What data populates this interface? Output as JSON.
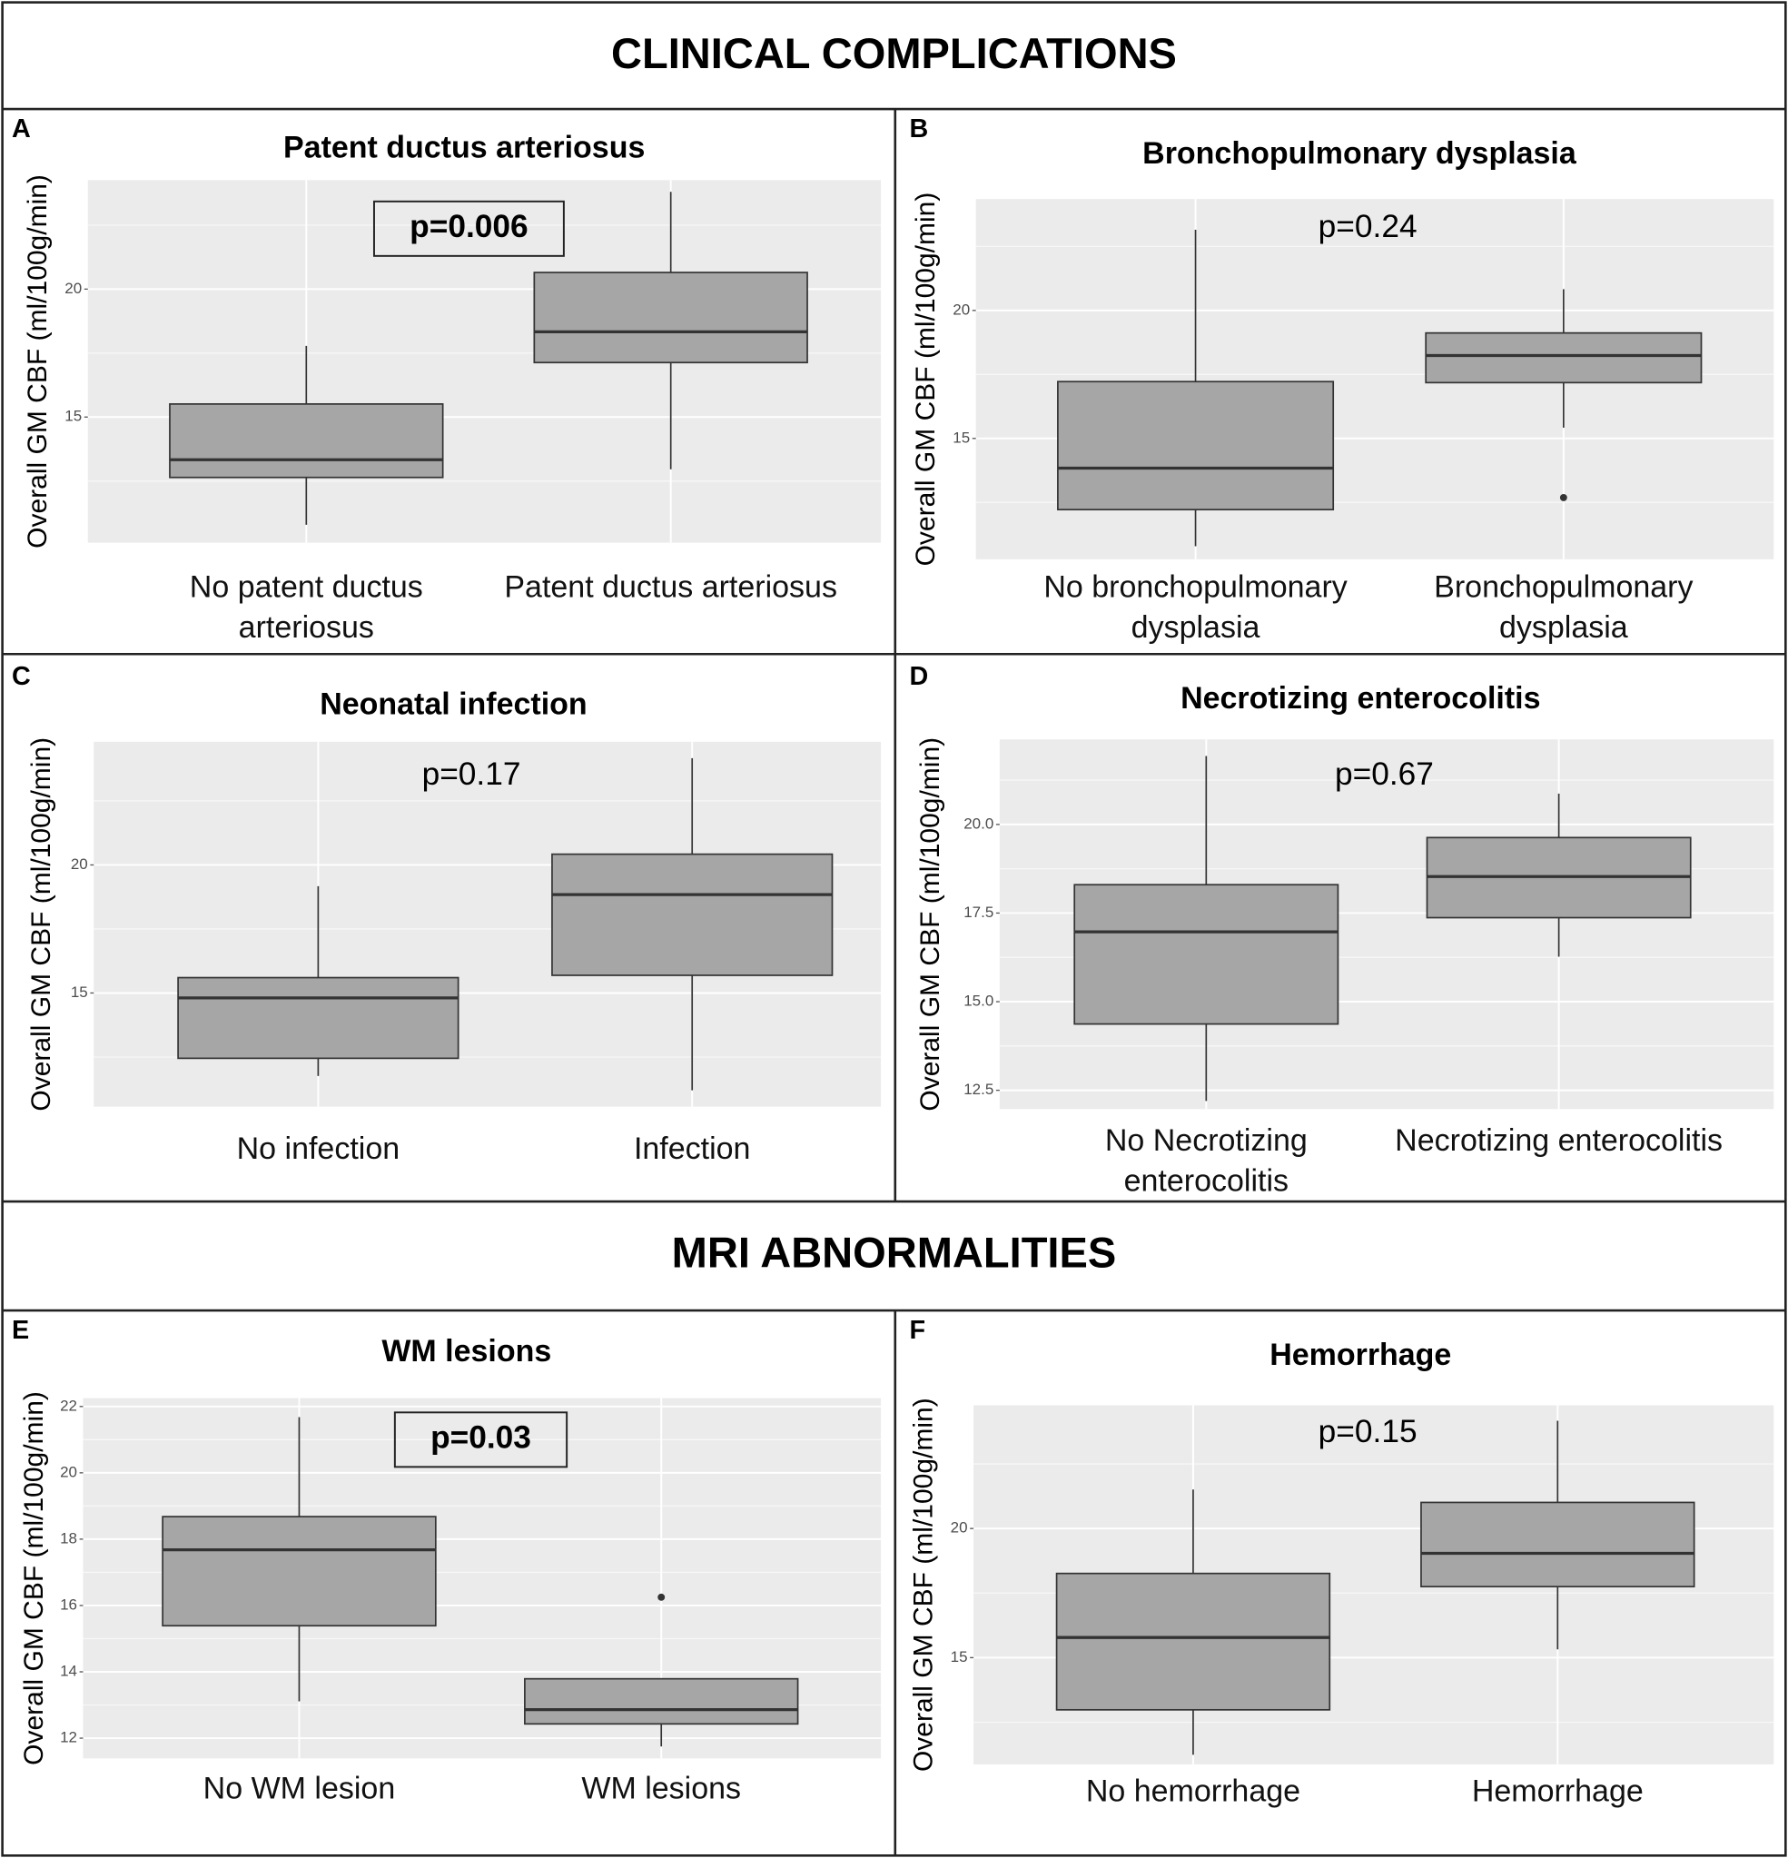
{
  "headers": [
    "CLINICAL COMPLICATIONS",
    "MRI ABNORMALITIES"
  ],
  "chart_data": [
    {
      "type": "box",
      "panel": "A",
      "title": "Patent ductus arteriosus",
      "ylabel": "Overall GM CBF (ml/100g/min)",
      "categories": [
        "No patent ductus arteriosus",
        "Patent ductus arteriosus"
      ],
      "boxes": [
        {
          "whisker_low": 10.79,
          "q1": 12.64,
          "median": 13.33,
          "q3": 15.51,
          "whisker_high": 17.78,
          "outliers": []
        },
        {
          "whisker_low": 12.96,
          "q1": 17.13,
          "median": 18.33,
          "q3": 20.65,
          "whisker_high": 23.8,
          "outliers": []
        }
      ],
      "ylim": [
        10.09,
        24.26
      ],
      "yticks": [
        15,
        20
      ],
      "grid": true,
      "color": "#a6a6a6",
      "annotation": "p=0.006",
      "annotation_boxed": true
    },
    {
      "type": "box",
      "panel": "B",
      "title": "Bronchopulmonary dysplasia",
      "ylabel": "Overall GM CBF (ml/100g/min)",
      "categories": [
        "No bronchopulmonary dysplasia",
        "Bronchopulmonary dysplasia"
      ],
      "boxes": [
        {
          "whisker_low": 10.79,
          "q1": 12.22,
          "median": 13.84,
          "q3": 17.22,
          "whisker_high": 23.15,
          "outliers": []
        },
        {
          "whisker_low": 15.42,
          "q1": 17.18,
          "median": 18.24,
          "q3": 19.12,
          "whisker_high": 20.83,
          "outliers": [
            12.69
          ]
        }
      ],
      "ylim": [
        10.28,
        24.35
      ],
      "yticks": [
        15,
        20
      ],
      "grid": true,
      "color": "#a6a6a6",
      "annotation": "p=0.24",
      "annotation_boxed": false
    },
    {
      "type": "box",
      "panel": "C",
      "title": "Neonatal infection",
      "ylabel": "Overall GM CBF (ml/100g/min)",
      "categories": [
        "No infection",
        "Infection"
      ],
      "boxes": [
        {
          "whisker_low": 11.76,
          "q1": 12.45,
          "median": 14.81,
          "q3": 15.6,
          "whisker_high": 19.17,
          "outliers": []
        },
        {
          "whisker_low": 11.2,
          "q1": 15.69,
          "median": 18.84,
          "q3": 20.42,
          "whisker_high": 24.17,
          "outliers": []
        }
      ],
      "ylim": [
        10.56,
        24.81
      ],
      "yticks": [
        15,
        20
      ],
      "grid": true,
      "color": "#a6a6a6",
      "annotation": "p=0.17",
      "annotation_boxed": false
    },
    {
      "type": "box",
      "panel": "D",
      "title": "Necrotizing enterocolitis",
      "ylabel": "Overall GM CBF (ml/100g/min)",
      "categories": [
        "No Necrotizing enterocolitis",
        "Necrotizing enterocolitis"
      ],
      "boxes": [
        {
          "whisker_low": 12.2,
          "q1": 14.37,
          "median": 16.97,
          "q3": 18.3,
          "whisker_high": 21.93,
          "outliers": []
        },
        {
          "whisker_low": 16.27,
          "q1": 17.37,
          "median": 18.53,
          "q3": 19.63,
          "whisker_high": 20.87,
          "outliers": []
        }
      ],
      "ylim": [
        11.97,
        22.4
      ],
      "yticks": [
        12.5,
        {
          "value": 15,
          "label": "15.0"
        },
        17.5,
        {
          "value": 20,
          "label": "20.0"
        }
      ],
      "grid": true,
      "color": "#a6a6a6",
      "annotation": "p=0.67",
      "annotation_boxed": false
    },
    {
      "type": "box",
      "panel": "E",
      "title": "WM lesions",
      "ylabel": "Overall GM CBF (ml/100g/min)",
      "categories": [
        "No WM lesion",
        "WM lesions"
      ],
      "boxes": [
        {
          "whisker_low": 13.11,
          "q1": 15.39,
          "median": 17.68,
          "q3": 18.68,
          "whisker_high": 21.68,
          "outliers": []
        },
        {
          "whisker_low": 11.75,
          "q1": 12.43,
          "median": 12.86,
          "q3": 13.79,
          "whisker_high": 13.79,
          "outliers": [
            16.25
          ]
        }
      ],
      "ylim": [
        11.39,
        22.25
      ],
      "yticks": [
        12,
        14,
        16,
        18,
        20,
        22
      ],
      "grid": true,
      "color": "#a6a6a6",
      "annotation": "p=0.03",
      "annotation_boxed": true
    },
    {
      "type": "box",
      "panel": "F",
      "title": "Hemorrhage",
      "ylabel": "Overall GM CBF (ml/100g/min)",
      "categories": [
        "No hemorrhage",
        "Hemorrhage"
      ],
      "boxes": [
        {
          "whisker_low": 11.24,
          "q1": 12.98,
          "median": 15.78,
          "q3": 18.26,
          "whisker_high": 21.51,
          "outliers": []
        },
        {
          "whisker_low": 15.32,
          "q1": 17.75,
          "median": 19.04,
          "q3": 21.01,
          "whisker_high": 24.17,
          "outliers": []
        }
      ],
      "ylim": [
        10.87,
        24.77
      ],
      "yticks": [
        15,
        20
      ],
      "grid": true,
      "color": "#a6a6a6",
      "annotation": "p=0.15",
      "annotation_boxed": false
    }
  ]
}
